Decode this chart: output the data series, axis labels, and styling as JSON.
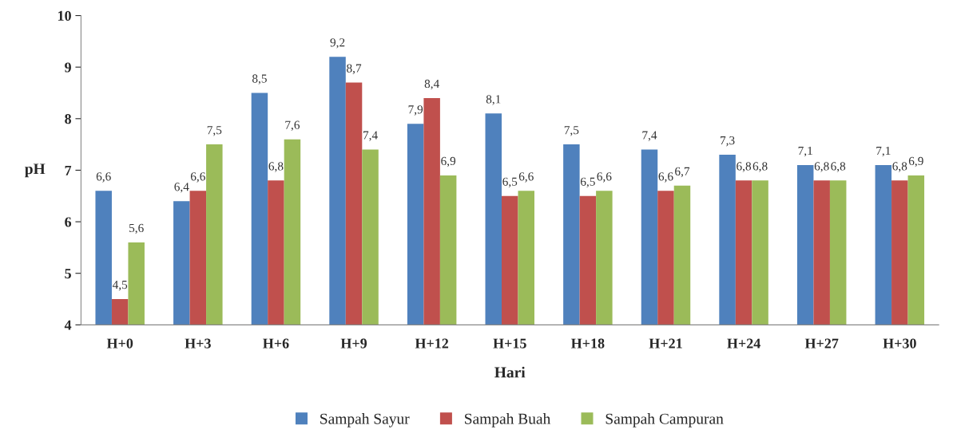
{
  "chart_data": {
    "type": "bar",
    "xlabel": "Hari",
    "ylabel": "pH",
    "categories": [
      "H+0",
      "H+3",
      "H+6",
      "H+9",
      "H+12",
      "H+15",
      "H+18",
      "H+21",
      "H+24",
      "H+27",
      "H+30"
    ],
    "series": [
      {
        "name": "Sampah Sayur",
        "color": "#4f81bd",
        "values": [
          6.6,
          6.4,
          8.5,
          9.2,
          7.9,
          8.1,
          7.5,
          7.4,
          7.3,
          7.1,
          7.1
        ],
        "value_labels": [
          "6,6",
          "6,4",
          "8,5",
          "9,2",
          "7,9",
          "8,1",
          "7,5",
          "7,4",
          "7,3",
          "7,1",
          "7,1"
        ]
      },
      {
        "name": "Sampah Buah",
        "color": "#c0504d",
        "values": [
          4.5,
          6.6,
          6.8,
          8.7,
          8.4,
          6.5,
          6.5,
          6.6,
          6.8,
          6.8,
          6.8
        ],
        "value_labels": [
          "4,5",
          "6,6",
          "6,8",
          "8,7",
          "8,4",
          "6,5",
          "6,5",
          "6,6",
          "6,8",
          "6,8",
          "6,8"
        ]
      },
      {
        "name": "Sampah Campuran",
        "color": "#9bbb59",
        "values": [
          5.6,
          7.5,
          7.6,
          7.4,
          6.9,
          6.6,
          6.6,
          6.7,
          6.8,
          6.8,
          6.9
        ],
        "value_labels": [
          "5,6",
          "7,5",
          "7,6",
          "7,4",
          "6,9",
          "6,6",
          "6,6",
          "6,7",
          "6,8",
          "6,8",
          "6,9"
        ]
      }
    ],
    "ylim": [
      4,
      10
    ],
    "yticks": [
      4,
      5,
      6,
      7,
      8,
      9,
      10
    ],
    "grid": false,
    "legend": "bottom"
  }
}
